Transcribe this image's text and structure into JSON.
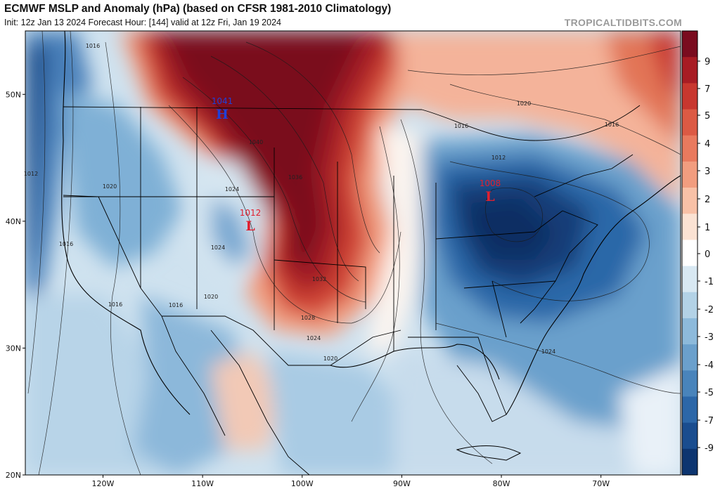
{
  "header": {
    "title": "ECMWF MSLP and Anomaly (hPa) (based on CFSR 1981-2010 Climatology)",
    "subtitle": "Init: 12z Jan 13 2024   Forecast Hour: [144]   valid at 12z Fri, Jan 19 2024",
    "watermark": "TROPICALTIDBITS.COM"
  },
  "map": {
    "lon_range": [
      -127.8,
      -62
    ],
    "lat_range": [
      20,
      55
    ],
    "lat_labels": [
      "20N",
      "30N",
      "40N",
      "50N"
    ],
    "lon_labels": [
      "120W",
      "110W",
      "100W",
      "90W",
      "80W",
      "70W"
    ],
    "pressure_centers": [
      {
        "type": "H",
        "value": "1041",
        "color": "#2040d8"
      },
      {
        "type": "L",
        "value": "1012",
        "color": "#e02030"
      },
      {
        "type": "L",
        "value": "1008",
        "color": "#e02030"
      }
    ],
    "isobar_labels": [
      "1016",
      "1020",
      "1016",
      "1016",
      "1012",
      "1040",
      "1036",
      "1032",
      "1028",
      "1024",
      "1020",
      "1016",
      "1012",
      "1024",
      "1020",
      "1016",
      "1024",
      "1020",
      "1016",
      "1024"
    ]
  },
  "colorbar": {
    "ticks": [
      "9",
      "7",
      "5",
      "4",
      "3",
      "2",
      "1",
      "0",
      "-1",
      "-2",
      "-3",
      "-4",
      "-5",
      "-7",
      "-9"
    ],
    "colors": [
      "#7a0c1f",
      "#a81c24",
      "#c8372f",
      "#dc5a44",
      "#e97a5e",
      "#f29d7f",
      "#f8c1a7",
      "#fbe2d3",
      "#ffffff",
      "#d8e8f2",
      "#b3d2e6",
      "#8dbadb",
      "#6ba0cc",
      "#4984bb",
      "#2c67a8",
      "#1a4d8f",
      "#0d3570"
    ]
  }
}
